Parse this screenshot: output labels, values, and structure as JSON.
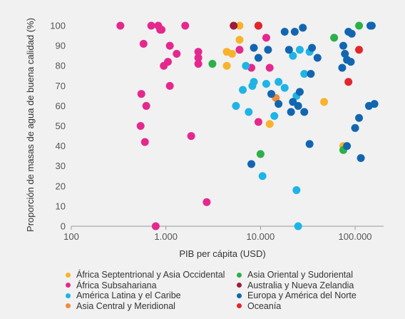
{
  "chart_data": {
    "type": "scatter",
    "xlabel": "PIB per cápita (USD)",
    "ylabel": "Proporción de masas de agua de buena calidad (%)",
    "x_scale": "log",
    "xlim": [
      100,
      200000
    ],
    "ylim": [
      0,
      105
    ],
    "x_ticks": [
      100,
      1000,
      10000,
      100000
    ],
    "x_tick_labels": [
      "100",
      "1.000",
      "10.000",
      "100.000"
    ],
    "y_ticks": [
      0,
      10,
      20,
      30,
      40,
      50,
      60,
      70,
      80,
      90,
      100
    ],
    "y_tick_labels": [
      "0",
      "10",
      "20",
      "30",
      "40",
      "50",
      "60",
      "70",
      "80",
      "90",
      "100"
    ],
    "grid": false,
    "legend_position": "bottom",
    "series": [
      {
        "name": "África Septentrional y Asia Occidental",
        "color": "#f7b32b",
        "points": [
          [
            4400,
            87
          ],
          [
            5000,
            86
          ],
          [
            6000,
            93
          ],
          [
            6000,
            100
          ],
          [
            4400,
            80
          ],
          [
            12500,
            51
          ],
          [
            47000,
            62
          ],
          [
            75000,
            40
          ]
        ]
      },
      {
        "name": "África Subsahariana",
        "color": "#e5288d",
        "points": [
          [
            330,
            100
          ],
          [
            700,
            100
          ],
          [
            830,
            100
          ],
          [
            870,
            98
          ],
          [
            900,
            98
          ],
          [
            580,
            91
          ],
          [
            1100,
            90
          ],
          [
            1300,
            86
          ],
          [
            1050,
            82
          ],
          [
            950,
            80
          ],
          [
            2200,
            87
          ],
          [
            2200,
            84
          ],
          [
            2200,
            81
          ],
          [
            1100,
            70
          ],
          [
            550,
            66
          ],
          [
            620,
            60
          ],
          [
            540,
            50
          ],
          [
            600,
            42
          ],
          [
            1850,
            45
          ],
          [
            1600,
            100
          ],
          [
            2700,
            12
          ],
          [
            6000,
            88
          ],
          [
            8000,
            79
          ],
          [
            11500,
            94
          ],
          [
            12500,
            79
          ],
          [
            9500,
            52
          ],
          [
            780,
            0
          ]
        ]
      },
      {
        "name": "América Latina y el Caribe",
        "color": "#1eb4e6",
        "points": [
          [
            6500,
            68
          ],
          [
            7000,
            80
          ],
          [
            7500,
            57
          ],
          [
            8200,
            70
          ],
          [
            8500,
            72
          ],
          [
            5500,
            60
          ],
          [
            11500,
            71
          ],
          [
            14000,
            55
          ],
          [
            15500,
            72
          ],
          [
            18000,
            69
          ],
          [
            22000,
            85
          ],
          [
            24000,
            65
          ],
          [
            26000,
            88
          ],
          [
            29000,
            76
          ],
          [
            10500,
            25
          ],
          [
            24000,
            18
          ],
          [
            25000,
            0
          ],
          [
            33000,
            87
          ]
        ]
      },
      {
        "name": "Asia Central y Meridional",
        "color": "#f08c3c",
        "points": [
          [
            14500,
            64
          ]
        ]
      },
      {
        "name": "Asia Oriental y Sudoriental",
        "color": "#2cb04a",
        "points": [
          [
            3100,
            81
          ],
          [
            10000,
            36
          ],
          [
            60000,
            94
          ],
          [
            75000,
            38
          ],
          [
            110000,
            100
          ]
        ]
      },
      {
        "name": "Australia y Nueva Zelandia",
        "color": "#9c1c3c",
        "points": [
          [
            5200,
            100
          ],
          [
            9500,
            100
          ]
        ]
      },
      {
        "name": "Europa y América del Norte",
        "color": "#1266b0",
        "points": [
          [
            8500,
            89
          ],
          [
            9500,
            84
          ],
          [
            12000,
            88
          ],
          [
            13000,
            66
          ],
          [
            15500,
            61
          ],
          [
            18000,
            97
          ],
          [
            20000,
            88
          ],
          [
            23000,
            97
          ],
          [
            22000,
            62
          ],
          [
            28000,
            99
          ],
          [
            21000,
            57
          ],
          [
            25000,
            60
          ],
          [
            29000,
            57
          ],
          [
            26000,
            67
          ],
          [
            35000,
            89
          ],
          [
            34000,
            76
          ],
          [
            40000,
            84
          ],
          [
            33000,
            41
          ],
          [
            75000,
            90
          ],
          [
            78000,
            86
          ],
          [
            85000,
            97
          ],
          [
            92000,
            96
          ],
          [
            82000,
            83
          ],
          [
            90000,
            82
          ],
          [
            73000,
            79
          ],
          [
            100000,
            49
          ],
          [
            110000,
            54
          ],
          [
            140000,
            60
          ],
          [
            160000,
            61
          ],
          [
            115000,
            34
          ],
          [
            150000,
            100
          ],
          [
            145000,
            100
          ],
          [
            82000,
            40
          ],
          [
            8000,
            31
          ]
        ]
      },
      {
        "name": "Oceanía",
        "color": "#e3262b",
        "points": [
          [
            9500,
            100
          ],
          [
            110000,
            88
          ],
          [
            85000,
            72
          ]
        ]
      }
    ]
  }
}
